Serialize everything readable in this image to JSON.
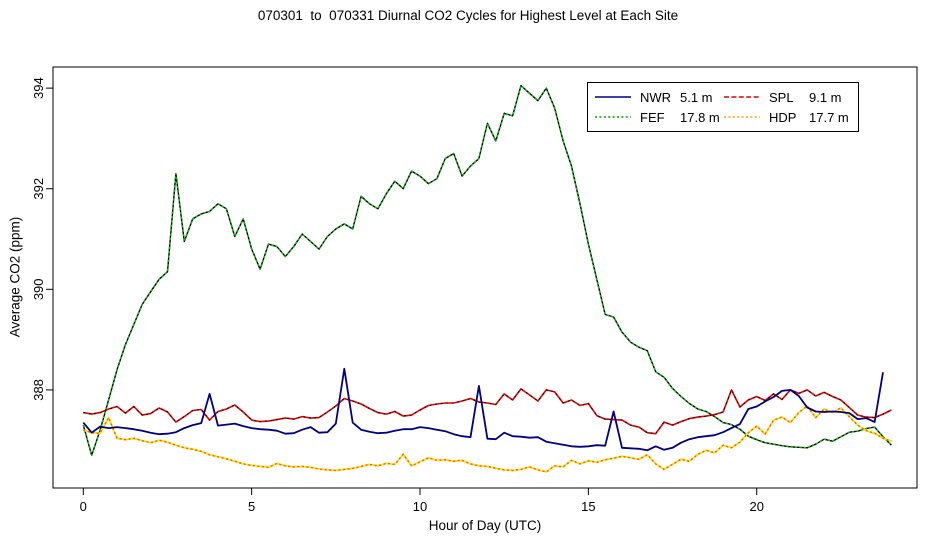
{
  "title": "070301  to  070331 Diurnal CO2 Cycles for Highest Level at Each Site",
  "background_color": "#FFFFFF",
  "chart_data": {
    "type": "line",
    "title": "070301  to  070331 Diurnal CO2 Cycles for Highest Level at Each Site",
    "xlabel": "Hour of Day (UTC)",
    "ylabel": "Average CO2 (ppm)",
    "xlim": [
      -0.9,
      24.76
    ],
    "ylim": [
      386.05,
      394.42
    ],
    "x_ticks": [
      0,
      5,
      10,
      15,
      20
    ],
    "y_ticks": [
      388,
      390,
      392,
      394
    ],
    "grid": false,
    "legend_position": "top-right",
    "hours": [
      0,
      0.25,
      0.5,
      0.75,
      1,
      1.25,
      1.5,
      1.75,
      2,
      2.25,
      2.5,
      2.75,
      3,
      3.25,
      3.5,
      3.75,
      4,
      4.25,
      4.5,
      4.75,
      5,
      5.25,
      5.5,
      5.75,
      6,
      6.25,
      6.5,
      6.75,
      7,
      7.25,
      7.5,
      7.75,
      8,
      8.25,
      8.5,
      8.75,
      9,
      9.25,
      9.5,
      9.75,
      10,
      10.25,
      10.5,
      10.75,
      11,
      11.25,
      11.5,
      11.75,
      12,
      12.25,
      12.5,
      12.75,
      13,
      13.25,
      13.5,
      13.75,
      14,
      14.25,
      14.5,
      14.75,
      15,
      15.25,
      15.5,
      15.75,
      16,
      16.25,
      16.5,
      16.75,
      17,
      17.25,
      17.5,
      17.75,
      18,
      18.25,
      18.5,
      18.75,
      19,
      19.25,
      19.5,
      19.75,
      20,
      20.25,
      20.5,
      20.75,
      21,
      21.25,
      21.5,
      21.75,
      22,
      22.25,
      22.5,
      22.75,
      23,
      23.25,
      23.5,
      23.75,
      24
    ],
    "series": [
      {
        "name": "NWR",
        "height": "5.1 m",
        "legend": {
          "color": "#000080",
          "dash": ""
        },
        "draw": {
          "base_color": "#000080",
          "base_width": 1.8,
          "overlay_color": "",
          "overlay_width": 0,
          "overlay_dash": ""
        },
        "values": [
          387.35,
          387.15,
          387.27,
          387.24,
          387.26,
          387.24,
          387.22,
          387.19,
          387.15,
          387.12,
          387.13,
          387.16,
          387.24,
          387.3,
          387.34,
          387.92,
          387.29,
          387.31,
          387.33,
          387.28,
          387.24,
          387.22,
          387.21,
          387.19,
          387.13,
          387.14,
          387.21,
          387.26,
          387.15,
          387.16,
          387.33,
          388.42,
          387.35,
          387.21,
          387.17,
          387.14,
          387.15,
          387.19,
          387.22,
          387.22,
          387.26,
          387.24,
          387.21,
          387.18,
          387.12,
          387.08,
          387.06,
          388.08,
          387.03,
          387.02,
          387.15,
          387.08,
          387.07,
          387.05,
          387.06,
          386.97,
          386.94,
          386.91,
          386.88,
          386.87,
          386.88,
          386.9,
          386.89,
          387.57,
          386.85,
          386.84,
          386.83,
          386.8,
          386.88,
          386.81,
          386.85,
          386.95,
          387.02,
          387.06,
          387.08,
          387.1,
          387.16,
          387.24,
          387.32,
          387.62,
          387.67,
          387.77,
          387.86,
          387.98,
          388.0,
          387.88,
          387.65,
          387.57,
          387.56,
          387.57,
          387.56,
          387.54,
          387.42,
          387.44,
          387.36,
          388.35,
          null
        ]
      },
      {
        "name": "FEF",
        "height": "17.8 m",
        "legend": {
          "color": "#00A000",
          "dash": "2,2.4"
        },
        "draw": {
          "base_color": "#000000",
          "base_width": 1.4,
          "overlay_color": "#00C000",
          "overlay_width": 1.4,
          "overlay_dash": "2.2,2.2"
        },
        "values": [
          387.3,
          386.7,
          387.2,
          387.8,
          388.4,
          388.9,
          389.3,
          389.7,
          389.95,
          390.2,
          390.35,
          392.3,
          390.95,
          391.4,
          391.5,
          391.55,
          391.7,
          391.6,
          391.05,
          391.4,
          390.8,
          390.4,
          390.9,
          390.85,
          390.65,
          390.85,
          391.1,
          390.95,
          390.8,
          391.05,
          391.2,
          391.3,
          391.2,
          391.85,
          391.7,
          391.6,
          391.9,
          392.15,
          392.0,
          392.35,
          392.25,
          392.1,
          392.2,
          392.6,
          392.7,
          392.25,
          392.45,
          392.6,
          393.3,
          392.95,
          393.5,
          393.45,
          394.05,
          393.9,
          393.75,
          394.0,
          393.6,
          392.95,
          392.45,
          391.7,
          390.9,
          390.2,
          389.5,
          389.45,
          389.15,
          388.95,
          388.85,
          388.78,
          388.36,
          388.25,
          388.03,
          387.87,
          387.73,
          387.62,
          387.57,
          387.47,
          387.35,
          387.31,
          387.22,
          387.08,
          387.01,
          386.95,
          386.92,
          386.89,
          386.87,
          386.86,
          386.85,
          386.92,
          387.02,
          386.98,
          387.07,
          387.16,
          387.18,
          387.23,
          387.26,
          387.07,
          386.9
        ]
      },
      {
        "name": "SPL",
        "height": "9.1 m",
        "legend": {
          "color": "#DD0000",
          "dash": "5,2.4"
        },
        "draw": {
          "base_color": "#DD0000",
          "base_width": 1.6,
          "overlay_color": "#000000",
          "overlay_width": 1.1,
          "overlay_dash": "1.6,4"
        },
        "values": [
          387.55,
          387.52,
          387.55,
          387.62,
          387.67,
          387.54,
          387.67,
          387.5,
          387.53,
          387.64,
          387.56,
          387.36,
          387.47,
          387.59,
          387.61,
          387.4,
          387.57,
          387.62,
          387.7,
          387.56,
          387.4,
          387.37,
          387.38,
          387.41,
          387.44,
          387.42,
          387.47,
          387.44,
          387.45,
          387.56,
          387.68,
          387.83,
          387.78,
          387.72,
          387.63,
          387.55,
          387.52,
          387.57,
          387.48,
          387.5,
          387.6,
          387.69,
          387.72,
          387.74,
          387.74,
          387.78,
          387.83,
          387.76,
          387.74,
          387.71,
          387.92,
          387.8,
          388.02,
          387.9,
          387.78,
          388.0,
          387.96,
          387.74,
          387.8,
          387.69,
          387.73,
          387.49,
          387.42,
          387.41,
          387.4,
          387.3,
          387.26,
          387.15,
          387.13,
          387.36,
          387.3,
          387.37,
          387.43,
          387.46,
          387.48,
          387.51,
          387.56,
          388.0,
          387.66,
          387.8,
          387.87,
          387.79,
          387.92,
          387.81,
          388.0,
          387.93,
          388.0,
          387.88,
          387.95,
          387.87,
          387.8,
          387.65,
          387.5,
          387.46,
          387.45,
          387.52,
          387.6
        ]
      },
      {
        "name": "HDP",
        "height": "17.7 m",
        "legend": {
          "color": "#FFA000",
          "dash": "2,2.4"
        },
        "draw": {
          "base_color": "#FFDF00",
          "base_width": 1.8,
          "overlay_color": "#FF5A00",
          "overlay_width": 1.4,
          "overlay_dash": "2,2.6"
        },
        "values": [
          387.2,
          387.15,
          387.14,
          387.45,
          387.04,
          387.01,
          387.04,
          386.99,
          386.95,
          387.0,
          386.96,
          386.9,
          386.85,
          386.82,
          386.78,
          386.71,
          386.67,
          386.63,
          386.58,
          386.53,
          386.5,
          386.48,
          386.46,
          386.54,
          386.49,
          386.47,
          386.48,
          386.46,
          386.43,
          386.41,
          386.4,
          386.42,
          386.44,
          386.48,
          386.52,
          386.49,
          386.54,
          386.52,
          386.72,
          386.49,
          386.57,
          386.65,
          386.6,
          386.61,
          386.58,
          386.6,
          386.53,
          386.49,
          386.48,
          386.44,
          386.41,
          386.4,
          386.42,
          386.47,
          386.41,
          386.37,
          386.49,
          386.47,
          386.6,
          386.53,
          386.59,
          386.56,
          386.61,
          386.64,
          386.68,
          386.65,
          386.62,
          386.71,
          386.53,
          386.42,
          386.52,
          386.62,
          386.58,
          386.72,
          386.8,
          386.75,
          386.9,
          386.85,
          386.96,
          387.15,
          387.28,
          387.12,
          387.4,
          387.46,
          387.35,
          387.55,
          387.68,
          387.45,
          387.62,
          387.55,
          387.64,
          387.47,
          387.3,
          387.19,
          387.14,
          387.04,
          386.98
        ]
      }
    ]
  }
}
